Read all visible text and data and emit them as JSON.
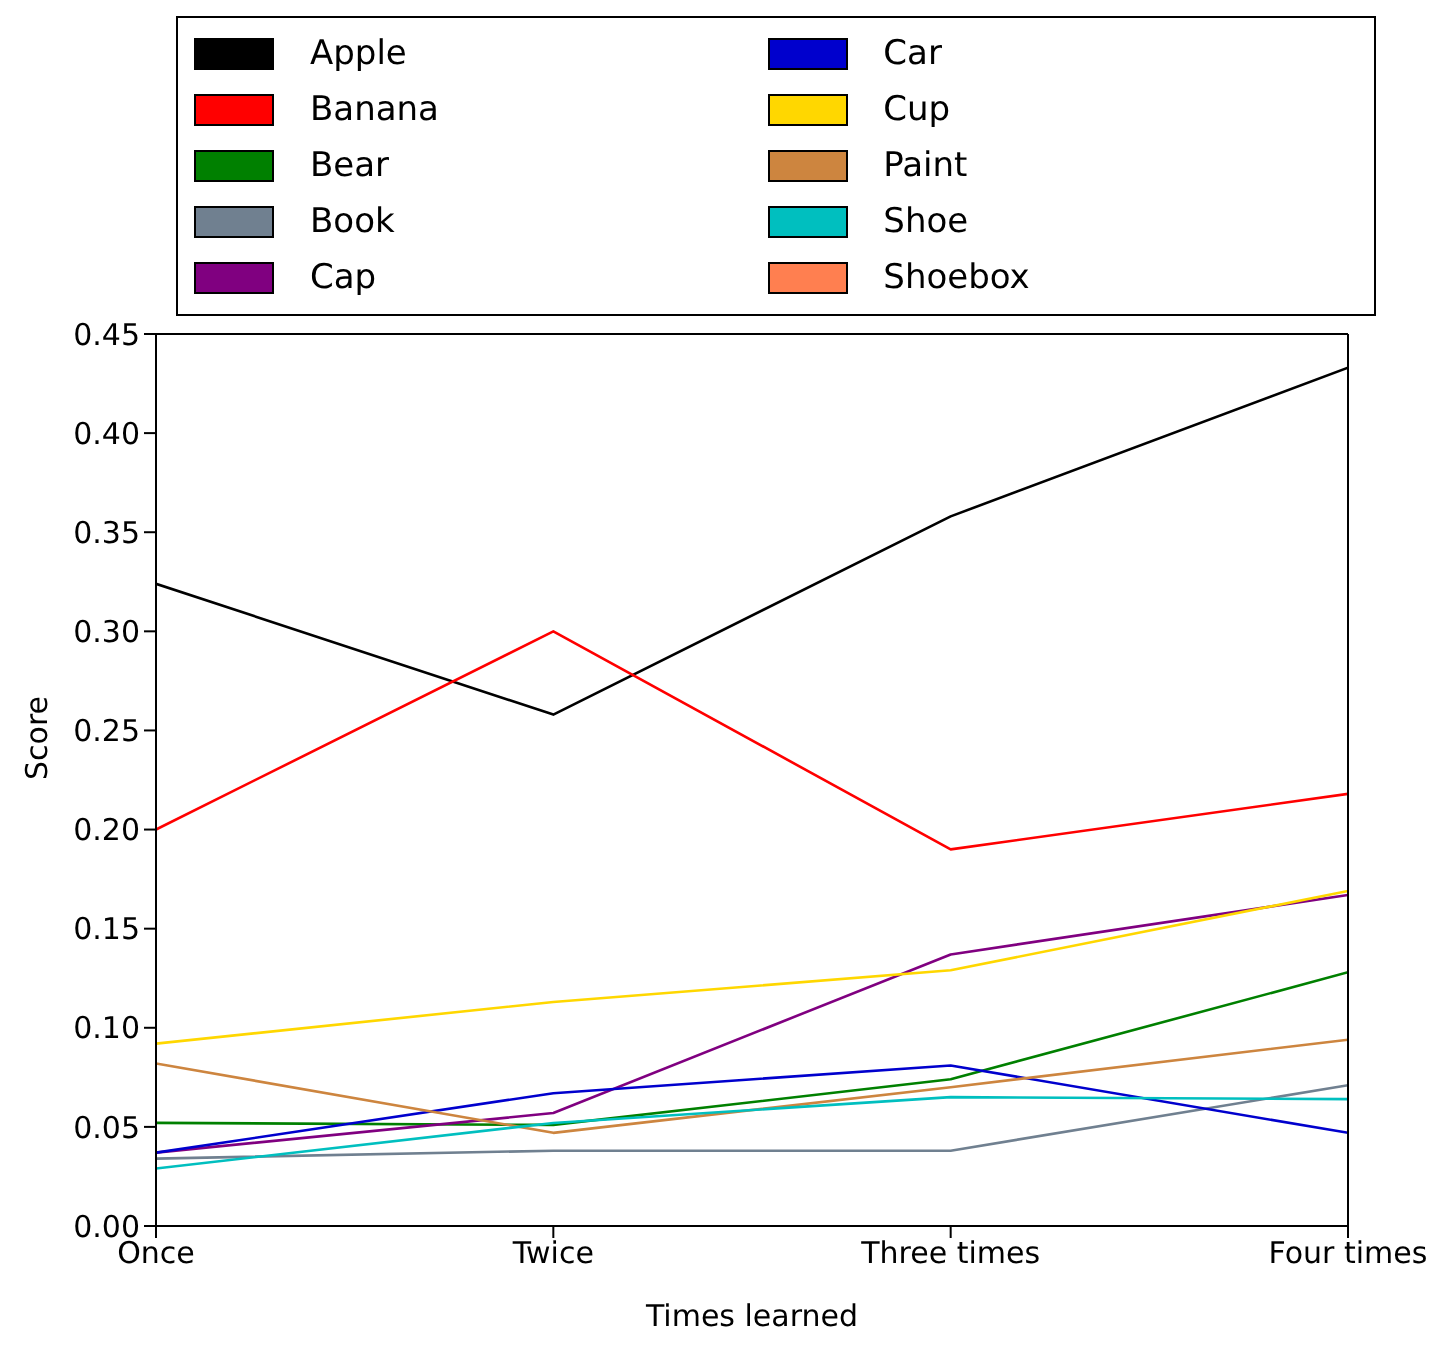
{
  "chart_data": {
    "type": "line",
    "xlabel": "Times learned",
    "ylabel": "Score",
    "categories": [
      "Once",
      "Twice",
      "Three times",
      "Four times"
    ],
    "ylim": [
      0,
      0.45
    ],
    "yticks": [
      {
        "value": 0,
        "label": "0.00"
      },
      {
        "value": 0.05,
        "label": "0.05"
      },
      {
        "value": 0.1,
        "label": "0.10"
      },
      {
        "value": 0.15,
        "label": "0.15"
      },
      {
        "value": 0.2,
        "label": "0.20"
      },
      {
        "value": 0.25,
        "label": "0.25"
      },
      {
        "value": 0.3,
        "label": "0.30"
      },
      {
        "value": 0.35,
        "label": "0.35"
      },
      {
        "value": 0.4,
        "label": "0.40"
      },
      {
        "value": 0.45,
        "label": "0.45"
      }
    ],
    "grid": false,
    "legend": "top",
    "marker": "none",
    "line_style": "solid",
    "series": [
      {
        "name": "Apple",
        "color": "#000000",
        "values": [
          0.324,
          0.258,
          0.358,
          0.433
        ]
      },
      {
        "name": "Banana",
        "color": "#ff0000",
        "values": [
          0.2,
          0.3,
          0.19,
          0.218
        ]
      },
      {
        "name": "Bear",
        "color": "#008000",
        "values": [
          0.052,
          0.051,
          0.074,
          0.128
        ]
      },
      {
        "name": "Book",
        "color": "#708090",
        "values": [
          0.034,
          0.038,
          0.038,
          0.071
        ]
      },
      {
        "name": "Cap",
        "color": "#800080",
        "values": [
          0.037,
          0.057,
          0.137,
          0.167
        ]
      },
      {
        "name": "Car",
        "color": "#0000cd",
        "values": [
          0.037,
          0.067,
          0.081,
          0.047
        ]
      },
      {
        "name": "Cup",
        "color": "#ffd700",
        "values": [
          0.092,
          0.113,
          0.129,
          0.169
        ]
      },
      {
        "name": "Paint",
        "color": "#cd853f",
        "values": [
          0.082,
          0.047,
          0.07,
          0.094
        ]
      },
      {
        "name": "Shoe",
        "color": "#00bfbf",
        "values": [
          0.029,
          0.052,
          0.065,
          0.064
        ]
      },
      {
        "name": "Shoebox",
        "color": "#ff7f50",
        "values": [
          null,
          null,
          null,
          null
        ]
      }
    ]
  }
}
